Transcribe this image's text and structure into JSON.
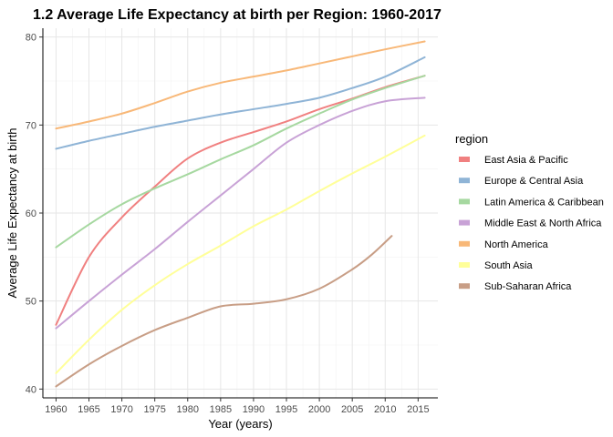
{
  "chart_data": {
    "type": "line",
    "title": "1.2 Average Life Expectancy at birth per Region: 1960-2017",
    "xlabel": "Year (years)",
    "ylabel": "Average Life Expectancy at birth",
    "xlim": [
      1958,
      2018
    ],
    "ylim": [
      39,
      81
    ],
    "x_ticks": [
      1960,
      1965,
      1970,
      1975,
      1980,
      1985,
      1990,
      1995,
      2000,
      2005,
      2010,
      2015
    ],
    "y_ticks": [
      40,
      50,
      60,
      70,
      80
    ],
    "grid": true,
    "legend_title": "region",
    "legend_position": "right",
    "series": [
      {
        "name": "East Asia & Pacific",
        "color": "#f08080",
        "x": [
          1960,
          1965,
          1970,
          1975,
          1980,
          1985,
          1990,
          1995,
          2000,
          2005,
          2010,
          2016
        ],
        "y": [
          47.3,
          55.0,
          59.5,
          63.0,
          66.2,
          68.0,
          69.2,
          70.4,
          71.8,
          73.0,
          74.3,
          75.6
        ]
      },
      {
        "name": "Europe & Central Asia",
        "color": "#8fb4d6",
        "x": [
          1960,
          1965,
          1970,
          1975,
          1980,
          1985,
          1990,
          1995,
          2000,
          2005,
          2010,
          2016
        ],
        "y": [
          67.3,
          68.2,
          69.0,
          69.8,
          70.5,
          71.2,
          71.8,
          72.4,
          73.1,
          74.2,
          75.5,
          77.7
        ]
      },
      {
        "name": "Latin America & Caribbean",
        "color": "#a6d8a0",
        "x": [
          1960,
          1965,
          1970,
          1975,
          1980,
          1985,
          1990,
          1995,
          2000,
          2005,
          2010,
          2016
        ],
        "y": [
          56.1,
          58.7,
          61.0,
          62.8,
          64.4,
          66.1,
          67.7,
          69.6,
          71.3,
          72.9,
          74.2,
          75.6
        ]
      },
      {
        "name": "Middle East & North Africa",
        "color": "#c8a2d6",
        "x": [
          1960,
          1965,
          1970,
          1975,
          1980,
          1985,
          1990,
          1995,
          2000,
          2005,
          2010,
          2016
        ],
        "y": [
          46.9,
          50.0,
          53.0,
          55.9,
          59.0,
          62.0,
          65.0,
          68.0,
          70.0,
          71.6,
          72.7,
          73.1
        ]
      },
      {
        "name": "North America",
        "color": "#f8b878",
        "x": [
          1960,
          1965,
          1970,
          1975,
          1980,
          1985,
          1990,
          1995,
          2000,
          2005,
          2010,
          2016
        ],
        "y": [
          69.6,
          70.4,
          71.3,
          72.5,
          73.8,
          74.8,
          75.5,
          76.2,
          77.0,
          77.8,
          78.6,
          79.5
        ]
      },
      {
        "name": "South Asia",
        "color": "#ffff99",
        "x": [
          1960,
          1965,
          1970,
          1975,
          1980,
          1985,
          1990,
          1995,
          2000,
          2005,
          2010,
          2016
        ],
        "y": [
          41.8,
          45.6,
          49.0,
          51.8,
          54.2,
          56.3,
          58.5,
          60.4,
          62.5,
          64.5,
          66.4,
          68.8
        ]
      },
      {
        "name": "Sub-Saharan Africa",
        "color": "#c89e86",
        "x": [
          1960,
          1965,
          1970,
          1975,
          1980,
          1985,
          1990,
          1995,
          2000,
          2005,
          2008,
          2011
        ],
        "y": [
          40.3,
          42.8,
          44.9,
          46.7,
          48.1,
          49.4,
          49.7,
          50.2,
          51.4,
          53.6,
          55.3,
          57.4
        ]
      }
    ]
  }
}
